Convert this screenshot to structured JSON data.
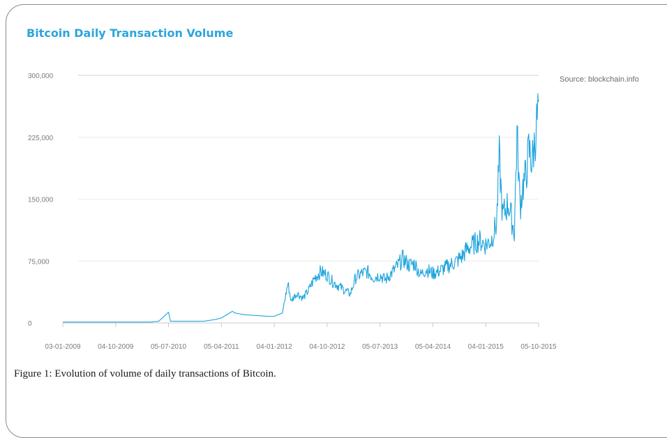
{
  "caption": "Figure 1: Evolution of volume of daily transactions of Bitcoin.",
  "chart_data": {
    "type": "line",
    "title": "Bitcoin Daily Transaction Volume",
    "source": "Source: blockchain.info",
    "xlabel": "",
    "ylabel": "",
    "ylim": [
      0,
      300000
    ],
    "yticks": [
      "0",
      "75,000",
      "150,000",
      "225,000",
      "300,000"
    ],
    "xticks": [
      "03-01-2009",
      "04-10-2009",
      "05-07-2010",
      "05-04-2011",
      "04-01-2012",
      "04-10-2012",
      "05-07-2013",
      "05-04-2014",
      "04-01-2015",
      "05-10-2015"
    ],
    "grid": true,
    "legend": "none",
    "line_color": "#1ca3dc",
    "series": [
      {
        "x": [
          "2009-01-03",
          "2009-04-01",
          "2009-07-01",
          "2009-10-04",
          "2010-01-01",
          "2010-04-01",
          "2010-05-15",
          "2010-07-05",
          "2010-07-15",
          "2010-10-01",
          "2011-01-01",
          "2011-03-01",
          "2011-04-05",
          "2011-06-01",
          "2011-06-15",
          "2011-08-01",
          "2011-10-01",
          "2011-12-01",
          "2012-01-04",
          "2012-02-15",
          "2012-03-15",
          "2012-04-01",
          "2012-04-15",
          "2012-05-01",
          "2012-06-01",
          "2012-07-01",
          "2012-08-01",
          "2012-09-01",
          "2012-10-04",
          "2012-11-01",
          "2012-12-01",
          "2013-01-01",
          "2013-02-01",
          "2013-03-01",
          "2013-04-01",
          "2013-05-01",
          "2013-06-01",
          "2013-07-05",
          "2013-08-01",
          "2013-09-01",
          "2013-10-01",
          "2013-11-01",
          "2013-12-01",
          "2014-01-01",
          "2014-02-01",
          "2014-03-01",
          "2014-04-05",
          "2014-05-01",
          "2014-06-01",
          "2014-07-01",
          "2014-08-01",
          "2014-09-01",
          "2014-10-01",
          "2014-11-01",
          "2014-12-01",
          "2015-01-04",
          "2015-02-01",
          "2015-03-01",
          "2015-03-15",
          "2015-04-01",
          "2015-05-01",
          "2015-06-01",
          "2015-06-15",
          "2015-07-01",
          "2015-07-15",
          "2015-08-01",
          "2015-08-15",
          "2015-09-01",
          "2015-09-15",
          "2015-10-01",
          "2015-10-05"
        ],
        "values": [
          1000,
          1000,
          1000,
          1000,
          1000,
          1000,
          2000,
          13000,
          2000,
          2000,
          2000,
          4000,
          6000,
          14000,
          12000,
          10000,
          9000,
          8000,
          8000,
          12000,
          48000,
          26000,
          32000,
          36000,
          30000,
          40000,
          55000,
          62000,
          58000,
          50000,
          45000,
          40000,
          35000,
          55000,
          60000,
          62000,
          55000,
          58000,
          52000,
          60000,
          68000,
          78000,
          70000,
          72000,
          58000,
          65000,
          60000,
          62000,
          66000,
          70000,
          74000,
          80000,
          90000,
          95000,
          100000,
          95000,
          100000,
          120000,
          200000,
          130000,
          145000,
          110000,
          230000,
          140000,
          165000,
          180000,
          210000,
          195000,
          220000,
          255000,
          270000
        ]
      }
    ]
  }
}
